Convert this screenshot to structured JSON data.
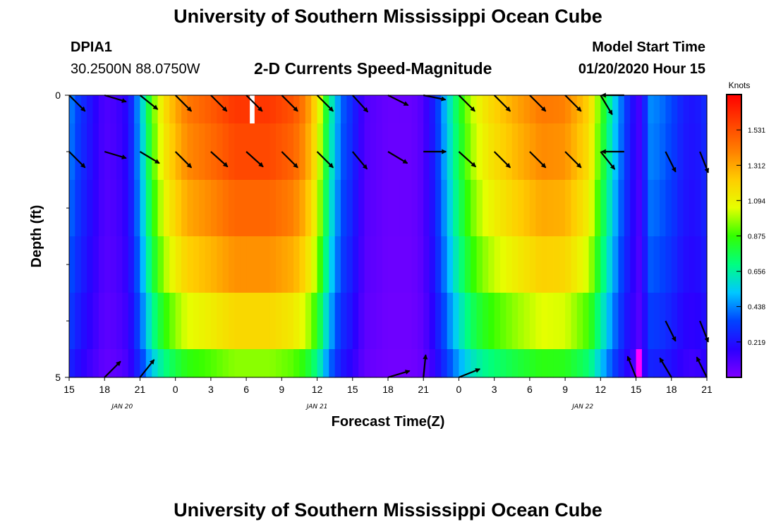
{
  "header": {
    "title": "University of Southern Mississippi Ocean Cube",
    "station": "DPIA1",
    "location": "30.2500N 88.0750W",
    "subtitle": "2-D Currents Speed-Magnitude",
    "start_label": "Model Start Time",
    "start_time": "01/20/2020 Hour 15"
  },
  "footer": {
    "title": "University of Southern Mississippi Ocean Cube"
  },
  "colors": {
    "colormap": [
      "#8000ff",
      "#2a00ff",
      "#0044ff",
      "#00c8ff",
      "#00ff80",
      "#33ff00",
      "#e6ff00",
      "#ffcc00",
      "#ff8000",
      "#ff4000",
      "#ff0000"
    ],
    "missing": "#ffffff",
    "highlight": "#ff00ff",
    "arrow": "#000000"
  },
  "chart_data": {
    "type": "heatmap",
    "title": "2-D Currents Speed-Magnitude",
    "xlabel": "Forecast Time(Z)",
    "ylabel": "Depth (ft)",
    "ylim": [
      0,
      5
    ],
    "y_tick_labels": [
      {
        "value": 0,
        "label": "0"
      },
      {
        "value": 5,
        "label": "5"
      }
    ],
    "y_minor_ticks": [
      1,
      2,
      3,
      4
    ],
    "x_start_hour": 0,
    "x_end_hour": 54,
    "x_ticks": [
      {
        "hour": 0,
        "label": "15"
      },
      {
        "hour": 3,
        "label": "18"
      },
      {
        "hour": 6,
        "label": "21"
      },
      {
        "hour": 9,
        "label": "0"
      },
      {
        "hour": 12,
        "label": "3"
      },
      {
        "hour": 15,
        "label": "6"
      },
      {
        "hour": 18,
        "label": "9"
      },
      {
        "hour": 21,
        "label": "12"
      },
      {
        "hour": 24,
        "label": "15"
      },
      {
        "hour": 27,
        "label": "18"
      },
      {
        "hour": 30,
        "label": "21"
      },
      {
        "hour": 33,
        "label": "0"
      },
      {
        "hour": 36,
        "label": "3"
      },
      {
        "hour": 39,
        "label": "6"
      },
      {
        "hour": 42,
        "label": "9"
      },
      {
        "hour": 45,
        "label": "12"
      },
      {
        "hour": 48,
        "label": "15"
      },
      {
        "hour": 51,
        "label": "18"
      },
      {
        "hour": 54,
        "label": "21"
      }
    ],
    "date_labels": [
      {
        "hour": 4.5,
        "label": "JAN  20"
      },
      {
        "hour": 21,
        "label": "JAN  21"
      },
      {
        "hour": 43.5,
        "label": "JAN  22"
      }
    ],
    "colorbar": {
      "unit": "Knots",
      "range": [
        0,
        1.75
      ],
      "tick_labels": [
        "0.219",
        "0.438",
        "0.656",
        "0.875",
        "1.094",
        "1.312",
        "1.531"
      ]
    },
    "depth_bins": [
      {
        "from": 0,
        "to": 0.5
      },
      {
        "from": 0.5,
        "to": 1.5
      },
      {
        "from": 1.5,
        "to": 2.5
      },
      {
        "from": 2.5,
        "to": 3.5
      },
      {
        "from": 3.5,
        "to": 4.5
      },
      {
        "from": 4.5,
        "to": 5
      }
    ],
    "surface_speed_knots": [
      [
        0,
        0.45
      ],
      [
        1,
        0.3
      ],
      [
        2,
        0.2
      ],
      [
        3,
        0.1
      ],
      [
        4,
        0.12
      ],
      [
        5,
        0.2
      ],
      [
        6,
        0.5
      ],
      [
        7,
        0.9
      ],
      [
        8,
        1.15
      ],
      [
        9,
        1.3
      ],
      [
        10,
        1.42
      ],
      [
        12,
        1.5
      ],
      [
        14,
        1.6
      ],
      [
        17,
        1.6
      ],
      [
        19,
        1.52
      ],
      [
        20,
        1.4
      ],
      [
        21,
        1.15
      ],
      [
        22,
        0.7
      ],
      [
        23,
        0.4
      ],
      [
        24,
        0.28
      ],
      [
        25,
        0.1
      ],
      [
        27,
        0.05
      ],
      [
        29,
        0.05
      ],
      [
        30,
        0.1
      ],
      [
        31,
        0.28
      ],
      [
        32,
        0.55
      ],
      [
        33,
        0.8
      ],
      [
        34,
        1.0
      ],
      [
        35,
        1.12
      ],
      [
        36,
        1.2
      ],
      [
        38,
        1.32
      ],
      [
        40,
        1.42
      ],
      [
        42,
        1.4
      ],
      [
        44,
        1.2
      ],
      [
        45,
        0.9
      ],
      [
        46,
        0.6
      ],
      [
        47,
        0.35
      ],
      [
        48,
        0.15
      ],
      [
        48.5,
        0.1
      ],
      [
        49,
        0.45
      ],
      [
        50,
        0.42
      ],
      [
        51,
        0.35
      ],
      [
        52,
        0.25
      ],
      [
        53,
        0.22
      ],
      [
        54,
        0.3
      ]
    ],
    "depth_factors": [
      1.0,
      0.97,
      0.92,
      0.85,
      0.74,
      0.6
    ],
    "missing_cells": [
      {
        "hour_from": 15.3,
        "hour_to": 15.7,
        "depth_bin": 0
      }
    ],
    "highlight_cells": [
      {
        "hour_from": 48,
        "hour_to": 48.5,
        "depth_bin": 5
      }
    ],
    "arrows": [
      {
        "hour": 0,
        "depth": 0,
        "dx": 1,
        "dy": 1
      },
      {
        "hour": 3,
        "depth": 0,
        "dx": 1,
        "dy": 0.3
      },
      {
        "hour": 6,
        "depth": 0,
        "dx": 1,
        "dy": 0.8
      },
      {
        "hour": 9,
        "depth": 0,
        "dx": 1,
        "dy": 1
      },
      {
        "hour": 12,
        "depth": 0,
        "dx": 1,
        "dy": 1
      },
      {
        "hour": 15,
        "depth": 0,
        "dx": 1,
        "dy": 1
      },
      {
        "hour": 18,
        "depth": 0,
        "dx": 1,
        "dy": 1
      },
      {
        "hour": 21,
        "depth": 0,
        "dx": 1,
        "dy": 1
      },
      {
        "hour": 24,
        "depth": 0,
        "dx": 1,
        "dy": 1.1
      },
      {
        "hour": 27,
        "depth": 0,
        "dx": 1,
        "dy": 0.5
      },
      {
        "hour": 30,
        "depth": 0,
        "dx": 1,
        "dy": 0.2
      },
      {
        "hour": 33,
        "depth": 0,
        "dx": 1,
        "dy": 1
      },
      {
        "hour": 36,
        "depth": 0,
        "dx": 1,
        "dy": 1
      },
      {
        "hour": 39,
        "depth": 0,
        "dx": 1,
        "dy": 1
      },
      {
        "hour": 42,
        "depth": 0,
        "dx": 1,
        "dy": 1
      },
      {
        "hour": 45,
        "depth": 0,
        "dx": 0.6,
        "dy": 1
      },
      {
        "hour": 47,
        "depth": 0,
        "dx": -1,
        "dy": 0
      },
      {
        "hour": 0,
        "depth": 1,
        "dx": 1,
        "dy": 1
      },
      {
        "hour": 3,
        "depth": 1,
        "dx": 1,
        "dy": 0.3
      },
      {
        "hour": 6,
        "depth": 1,
        "dx": 1,
        "dy": 0.6
      },
      {
        "hour": 9,
        "depth": 1,
        "dx": 1,
        "dy": 1
      },
      {
        "hour": 12,
        "depth": 1,
        "dx": 1,
        "dy": 0.9
      },
      {
        "hour": 15,
        "depth": 1,
        "dx": 1,
        "dy": 0.9
      },
      {
        "hour": 18,
        "depth": 1,
        "dx": 1,
        "dy": 1
      },
      {
        "hour": 21,
        "depth": 1,
        "dx": 1,
        "dy": 1
      },
      {
        "hour": 24,
        "depth": 1,
        "dx": 1,
        "dy": 1.2
      },
      {
        "hour": 27,
        "depth": 1,
        "dx": 1,
        "dy": 0.6
      },
      {
        "hour": 30,
        "depth": 1,
        "dx": 1,
        "dy": 0
      },
      {
        "hour": 33,
        "depth": 1,
        "dx": 1,
        "dy": 0.9
      },
      {
        "hour": 36,
        "depth": 1,
        "dx": 1,
        "dy": 1
      },
      {
        "hour": 39,
        "depth": 1,
        "dx": 1,
        "dy": 1
      },
      {
        "hour": 42,
        "depth": 1,
        "dx": 1,
        "dy": 1
      },
      {
        "hour": 45,
        "depth": 1,
        "dx": 0.8,
        "dy": 1
      },
      {
        "hour": 47,
        "depth": 1,
        "dx": -1,
        "dy": 0
      },
      {
        "hour": 50.5,
        "depth": 1,
        "dx": 0.5,
        "dy": 1
      },
      {
        "hour": 53.5,
        "depth": 1,
        "dx": 0.4,
        "dy": 1
      },
      {
        "hour": 50.5,
        "depth": 4,
        "dx": 0.5,
        "dy": 1
      },
      {
        "hour": 53.5,
        "depth": 4,
        "dx": 0.4,
        "dy": 1
      },
      {
        "hour": 3,
        "depth": 5,
        "dx": 1,
        "dy": -1
      },
      {
        "hour": 6,
        "depth": 5,
        "dx": 0.8,
        "dy": -1
      },
      {
        "hour": 27,
        "depth": 5,
        "dx": 1,
        "dy": -0.3
      },
      {
        "hour": 30,
        "depth": 5,
        "dx": 0.1,
        "dy": -1
      },
      {
        "hour": 33,
        "depth": 5,
        "dx": 1,
        "dy": -0.4
      },
      {
        "hour": 48,
        "depth": 5,
        "dx": -0.4,
        "dy": -1
      },
      {
        "hour": 51,
        "depth": 5,
        "dx": -0.6,
        "dy": -1
      },
      {
        "hour": 54,
        "depth": 5,
        "dx": -0.5,
        "dy": -1
      }
    ]
  }
}
